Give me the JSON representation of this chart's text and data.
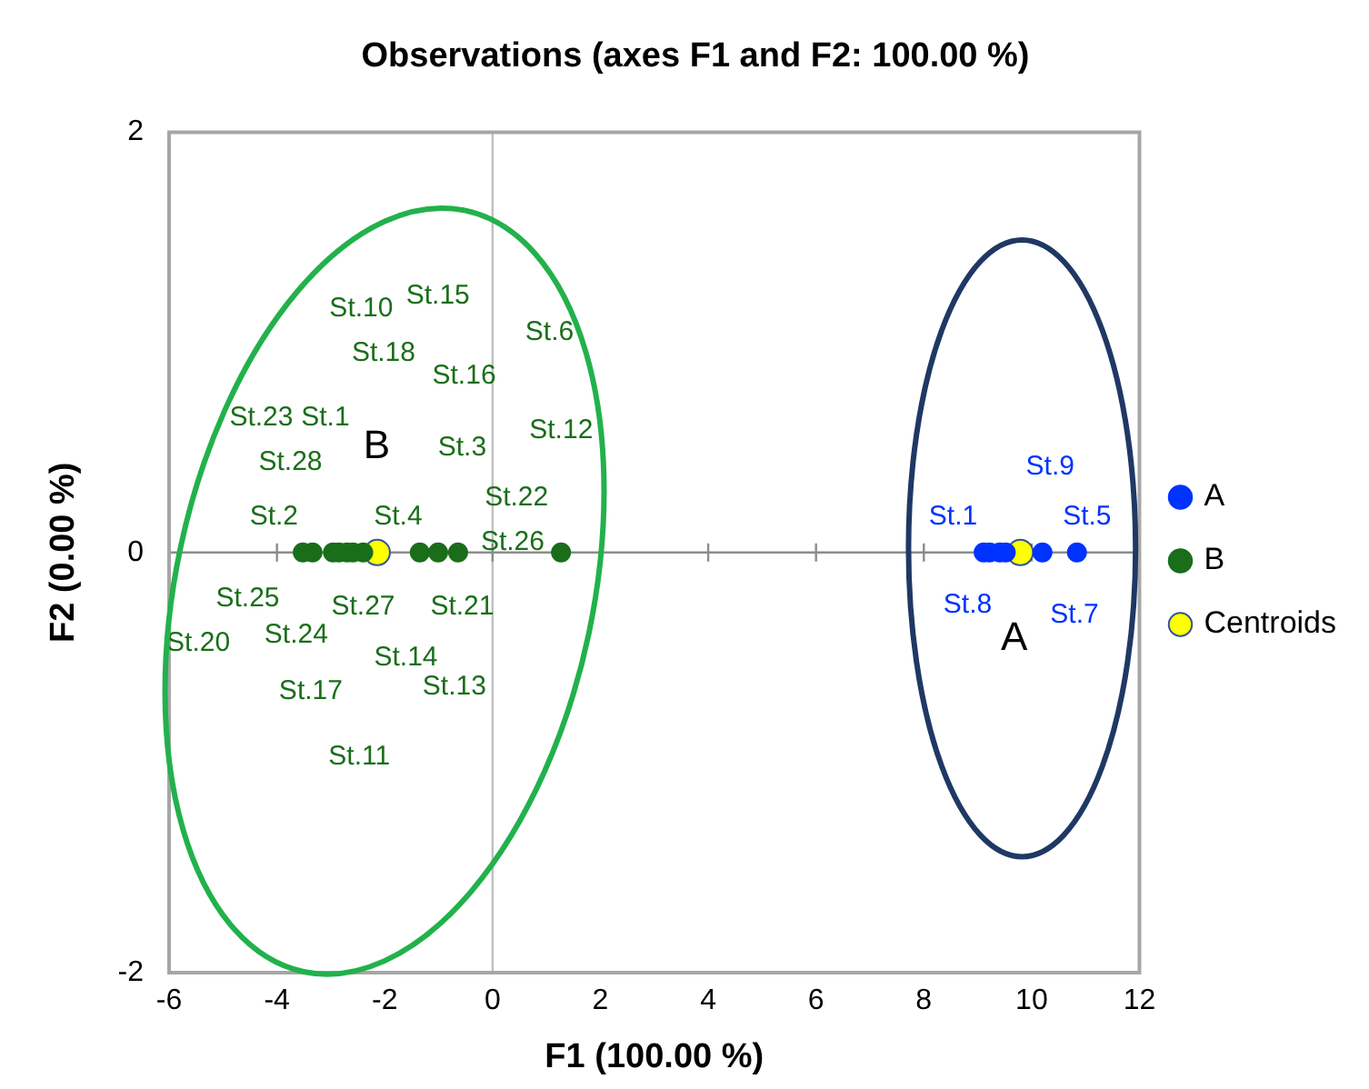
{
  "chart_data": {
    "type": "scatter",
    "title": "Observations (axes F1 and F2: 100.00 %)",
    "xlabel": "F1 (100.00 %)",
    "ylabel": "F2 (0.00 %)",
    "xlim": [
      -6,
      12
    ],
    "xticks": [
      -6,
      -4,
      -2,
      0,
      2,
      4,
      6,
      8,
      10,
      12
    ],
    "ylim": [
      -2,
      2
    ],
    "yticks": [
      -2,
      0,
      2
    ],
    "grid": false,
    "legend": "right",
    "marker": "circle",
    "ref_lines": [
      {
        "axis": "x",
        "value": 0,
        "color": "#bfbfbf"
      },
      {
        "axis": "y",
        "value": 0,
        "color": "#8c8c8c"
      }
    ],
    "series": [
      {
        "name": "A",
        "color": "#0033ff",
        "x": [
          9.11,
          9.22,
          9.41,
          9.52,
          10.2,
          10.84
        ],
        "values": [
          0,
          0,
          0,
          0,
          0,
          0
        ]
      },
      {
        "name": "B",
        "color": "#1a6e1a",
        "x": [
          -3.52,
          -3.34,
          -2.96,
          -2.85,
          -2.7,
          -2.59,
          -2.4,
          -1.35,
          -1.01,
          -0.64,
          1.27
        ],
        "values": [
          0,
          0,
          0,
          0,
          0,
          0,
          0,
          0,
          0,
          0,
          0
        ]
      },
      {
        "name": "Centroids",
        "color": "#ffff00",
        "x": [
          9.79,
          -2.14
        ],
        "values": [
          0,
          0
        ]
      }
    ],
    "annotations": [
      "St.10",
      "St.15",
      "St.6",
      "St.18",
      "St.16",
      "St.23",
      "St.1",
      "St.12",
      "St.3",
      "St.28",
      "B",
      "St.22",
      "St.2",
      "St.4",
      "St.26",
      "St.25",
      "St.27",
      "St.21",
      "St.20",
      "St.24",
      "St.14",
      "St.17",
      "St.13",
      "St.11",
      "St.9",
      "St.1",
      "St.5",
      "St.8",
      "St.7",
      "A"
    ]
  }
}
